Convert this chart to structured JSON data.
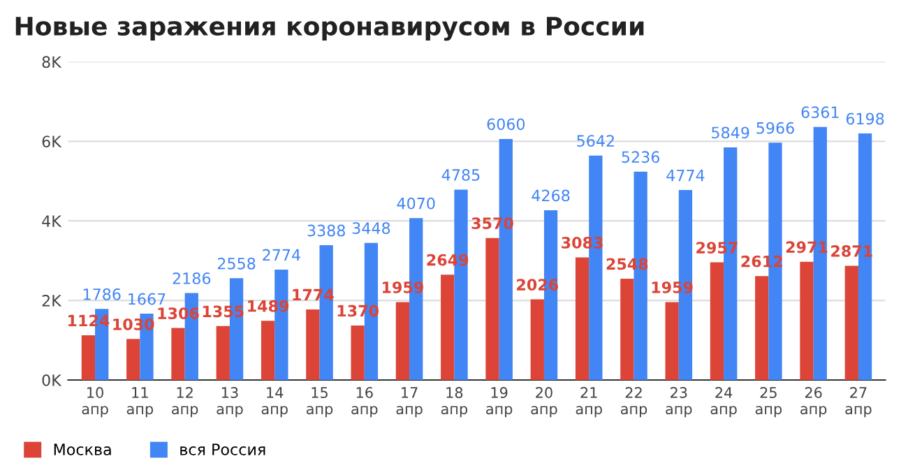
{
  "chart_data": {
    "type": "bar",
    "title": "Новые заражения коронавирусом в России",
    "categories": [
      "10\nапр",
      "11\nапр",
      "12\nапр",
      "13\nапр",
      "14\nапр",
      "15\nапр",
      "16\nапр",
      "17\nапр",
      "18\nапр",
      "19\nапр",
      "20\nапр",
      "21\nапр",
      "22\nапр",
      "23\nапр",
      "24\nапр",
      "25\nапр",
      "26\nапр",
      "27\nапр"
    ],
    "series": [
      {
        "name": "Москва",
        "color": "#db4437",
        "values": [
          1124,
          1030,
          1306,
          1355,
          1489,
          1774,
          1370,
          1959,
          2649,
          3570,
          2026,
          3083,
          2548,
          1959,
          2957,
          2612,
          2971,
          2871
        ]
      },
      {
        "name": "вся Россия",
        "color": "#4285f4",
        "values": [
          1786,
          1667,
          2186,
          2558,
          2774,
          3388,
          3448,
          4070,
          4785,
          6060,
          4268,
          5642,
          5236,
          4774,
          5849,
          5966,
          6361,
          6198
        ]
      }
    ],
    "ylim": [
      0,
      8000
    ],
    "yticks": [
      {
        "value": 0,
        "label": "0K"
      },
      {
        "value": 2000,
        "label": "2K"
      },
      {
        "value": 4000,
        "label": "4K"
      },
      {
        "value": 6000,
        "label": "6K"
      },
      {
        "value": 8000,
        "label": "8K"
      }
    ],
    "grid": "y",
    "legend": "bottom left",
    "data_labels": true
  }
}
